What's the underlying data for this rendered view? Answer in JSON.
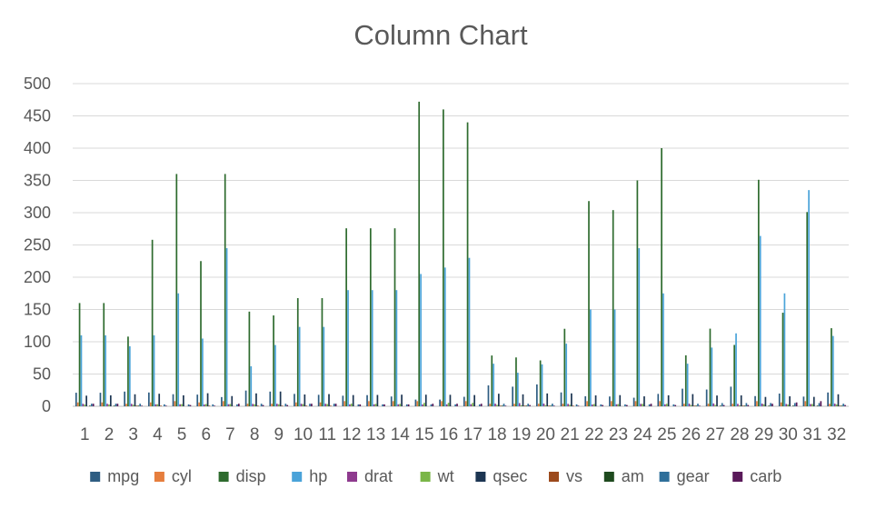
{
  "chart_data": {
    "type": "bar",
    "title": "Column Chart",
    "xlabel": "",
    "ylabel": "",
    "ylim": [
      0,
      500
    ],
    "yticks": [
      0,
      50,
      100,
      150,
      200,
      250,
      300,
      350,
      400,
      450,
      500
    ],
    "grid": true,
    "legend_position": "bottom",
    "categories": [
      "1",
      "2",
      "3",
      "4",
      "5",
      "6",
      "7",
      "8",
      "9",
      "10",
      "11",
      "12",
      "13",
      "14",
      "15",
      "16",
      "17",
      "18",
      "19",
      "20",
      "21",
      "22",
      "23",
      "24",
      "25",
      "26",
      "27",
      "28",
      "29",
      "30",
      "31",
      "32"
    ],
    "series": [
      {
        "name": "mpg",
        "color": "#2e5d82",
        "values": [
          21,
          21,
          22.8,
          21.4,
          18.7,
          18.1,
          14.3,
          24.4,
          22.8,
          19.2,
          17.8,
          16.4,
          17.3,
          15.2,
          10.4,
          10.4,
          14.7,
          32.4,
          30.4,
          33.9,
          21.5,
          15.5,
          15.2,
          13.3,
          19.2,
          27.3,
          26,
          30.4,
          15.8,
          19.7,
          15,
          21.4
        ]
      },
      {
        "name": "cyl",
        "color": "#e67e3d",
        "values": [
          6,
          6,
          4,
          6,
          8,
          6,
          8,
          4,
          4,
          6,
          6,
          8,
          8,
          8,
          8,
          8,
          8,
          4,
          4,
          4,
          4,
          8,
          8,
          8,
          8,
          4,
          4,
          4,
          8,
          6,
          8,
          4
        ]
      },
      {
        "name": "disp",
        "color": "#2e6b2e",
        "values": [
          160,
          160,
          108,
          258,
          360,
          225,
          360,
          146.7,
          140.8,
          167.6,
          167.6,
          275.8,
          275.8,
          275.8,
          472,
          460,
          440,
          78.7,
          75.7,
          71.1,
          120.1,
          318,
          304,
          350,
          400,
          79,
          120.3,
          95.1,
          351,
          145,
          301,
          121
        ]
      },
      {
        "name": "hp",
        "color": "#4aa3d9",
        "values": [
          110,
          110,
          93,
          110,
          175,
          105,
          245,
          62,
          95,
          123,
          123,
          180,
          180,
          180,
          205,
          215,
          230,
          66,
          52,
          65,
          97,
          150,
          150,
          245,
          175,
          66,
          91,
          113,
          264,
          175,
          335,
          109
        ]
      },
      {
        "name": "drat",
        "color": "#8e3a8e",
        "values": [
          3.9,
          3.9,
          3.85,
          3.08,
          3.15,
          2.76,
          3.21,
          3.69,
          3.92,
          3.92,
          3.92,
          3.07,
          3.07,
          3.07,
          2.93,
          3,
          3.23,
          4.08,
          4.93,
          4.22,
          3.7,
          2.76,
          3.15,
          3.73,
          3.08,
          4.08,
          4.43,
          3.77,
          4.22,
          3.62,
          3.54,
          4.11
        ]
      },
      {
        "name": "wt",
        "color": "#7ab648",
        "values": [
          2.62,
          2.875,
          2.32,
          3.215,
          3.44,
          3.46,
          3.57,
          3.19,
          3.15,
          3.44,
          3.44,
          4.07,
          3.73,
          3.78,
          5.25,
          5.424,
          5.345,
          2.2,
          1.615,
          1.835,
          2.465,
          3.52,
          3.435,
          3.84,
          3.845,
          1.935,
          2.14,
          1.513,
          3.17,
          2.77,
          3.57,
          2.78
        ]
      },
      {
        "name": "qsec",
        "color": "#1c3552",
        "values": [
          16.46,
          17.02,
          18.61,
          19.44,
          17.02,
          20.22,
          15.84,
          20,
          22.9,
          18.3,
          18.9,
          17.4,
          17.6,
          18,
          17.98,
          17.82,
          17.42,
          19.47,
          18.52,
          19.9,
          20.01,
          16.87,
          17.3,
          15.41,
          17.05,
          18.9,
          16.7,
          16.9,
          14.5,
          15.5,
          14.6,
          18.6
        ]
      },
      {
        "name": "vs",
        "color": "#9c4a1c",
        "values": [
          0,
          0,
          1,
          1,
          0,
          1,
          0,
          1,
          1,
          1,
          1,
          0,
          0,
          0,
          0,
          0,
          0,
          1,
          1,
          1,
          1,
          0,
          0,
          0,
          0,
          1,
          0,
          1,
          0,
          0,
          0,
          1
        ]
      },
      {
        "name": "am",
        "color": "#1e4a1e",
        "values": [
          1,
          1,
          1,
          0,
          0,
          0,
          0,
          0,
          0,
          0,
          0,
          0,
          0,
          0,
          0,
          0,
          0,
          1,
          1,
          1,
          0,
          0,
          0,
          0,
          0,
          1,
          1,
          1,
          1,
          1,
          1,
          1
        ]
      },
      {
        "name": "gear",
        "color": "#2f6f9a",
        "values": [
          4,
          4,
          4,
          3,
          3,
          3,
          3,
          4,
          4,
          4,
          4,
          3,
          3,
          3,
          3,
          3,
          3,
          4,
          4,
          4,
          3,
          3,
          3,
          3,
          3,
          4,
          5,
          5,
          5,
          5,
          5,
          4
        ]
      },
      {
        "name": "carb",
        "color": "#5a1a5a",
        "values": [
          4,
          4,
          1,
          1,
          2,
          1,
          4,
          2,
          2,
          4,
          4,
          3,
          3,
          3,
          4,
          4,
          4,
          1,
          2,
          1,
          1,
          2,
          2,
          4,
          2,
          1,
          2,
          2,
          4,
          6,
          8,
          2
        ]
      }
    ]
  }
}
